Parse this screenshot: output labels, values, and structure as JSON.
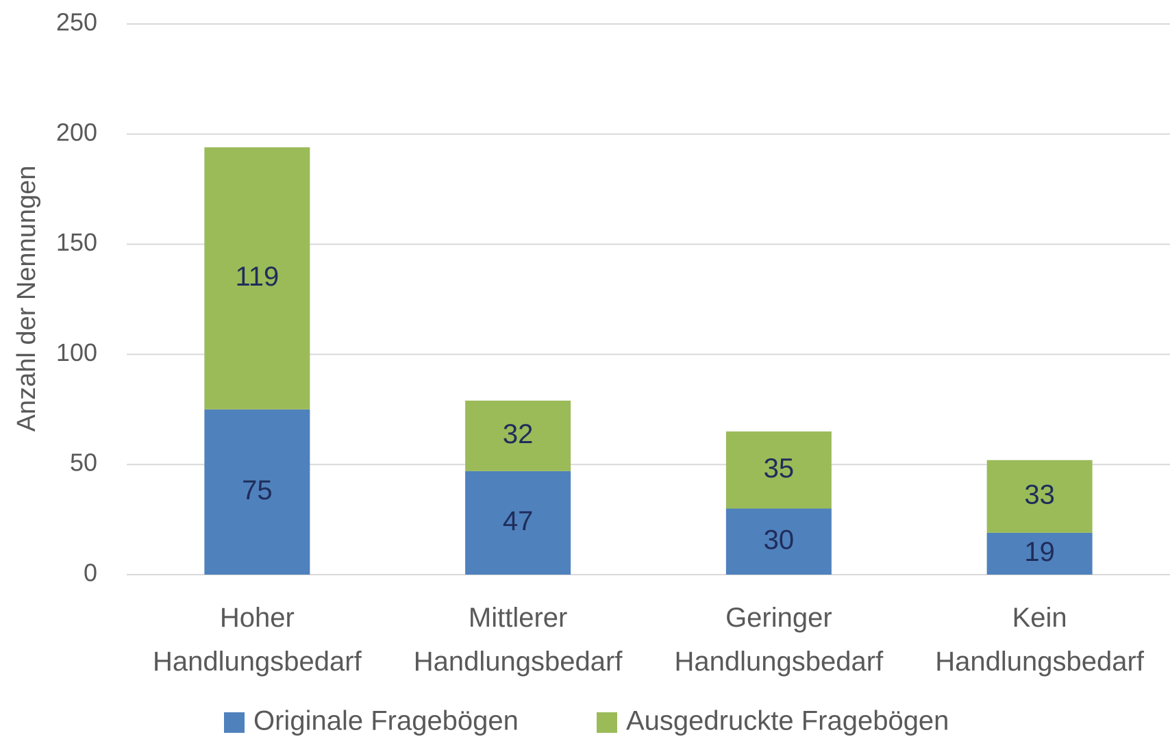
{
  "chart_data": {
    "type": "stacked_bar",
    "y_label": "Anzahl der Nennungen",
    "categories": [
      "Hoher Handlungsbedarf",
      "Mittlerer Handlungsbedarf",
      "Geringer Handlungsbedarf",
      "Kein Handlungsbedarf"
    ],
    "series": [
      {
        "name": "Originale Fragebögen",
        "color": "#4f81bd",
        "values": [
          75,
          47,
          30,
          19
        ]
      },
      {
        "name": "Ausgedruckte Fragebögen",
        "color": "#9bbb59",
        "values": [
          119,
          32,
          35,
          33
        ]
      }
    ],
    "ylim": [
      0,
      250
    ],
    "yticks": [
      0,
      50,
      100,
      150,
      200,
      250
    ],
    "grid": true,
    "legend": "bottom"
  }
}
